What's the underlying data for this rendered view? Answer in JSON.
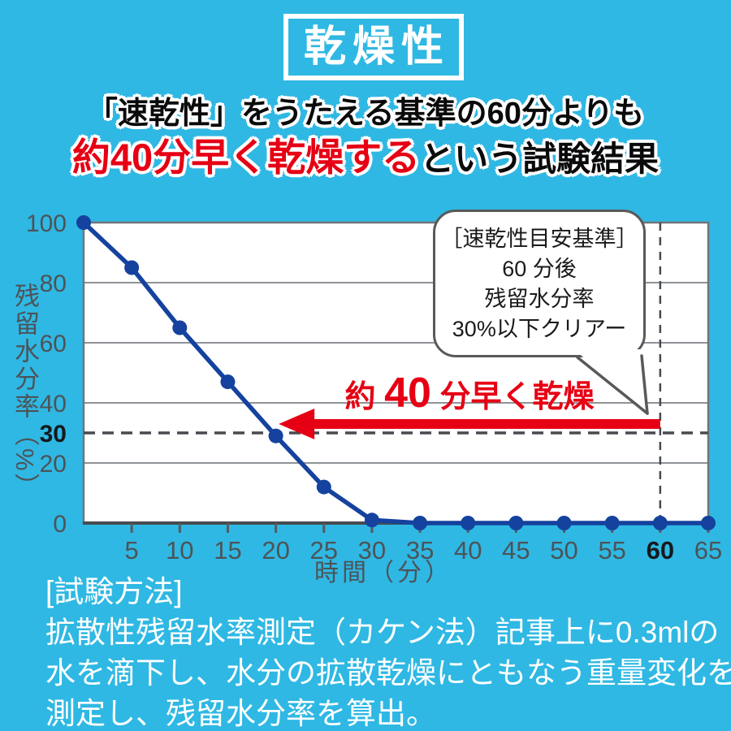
{
  "page": {
    "bg_color": "#2fb8e3",
    "badge": "乾燥性",
    "headline_line1": "「速乾性」をうたえる基準の60分よりも",
    "headline_line2_red": "約40分早く乾燥する",
    "headline_line2_black": "という試験結果"
  },
  "chart_data": {
    "type": "line",
    "x": [
      0,
      5,
      10,
      15,
      20,
      25,
      30,
      35,
      40,
      45,
      50,
      55,
      60,
      65
    ],
    "values": [
      100,
      85,
      65,
      47,
      29,
      12,
      1,
      0,
      0,
      0,
      0,
      0,
      0,
      0
    ],
    "xlabel": "時間（分）",
    "ylabel": "残留水分率（%）",
    "xlim": [
      0,
      65
    ],
    "ylim": [
      0,
      100
    ],
    "xticks": [
      5,
      10,
      15,
      20,
      25,
      30,
      35,
      40,
      45,
      50,
      55,
      60,
      65
    ],
    "yticks": [
      0,
      20,
      30,
      40,
      60,
      80,
      100
    ],
    "grid_y": [
      20,
      40,
      60,
      80
    ],
    "emphasized_xtick": 60,
    "emphasized_ytick": 30,
    "threshold_y": 30,
    "threshold_x": 60,
    "grid_on": true,
    "line_color": "#15429e",
    "annotation_arrow": {
      "from_x": 60,
      "to_x": 20.3,
      "color": "#e60014",
      "label_prefix": "約 ",
      "label_number": "40",
      "label_suffix": " 分早く乾燥"
    },
    "callout": {
      "lines": [
        "［速乾性目安基準］",
        "60 分後",
        "残留水分率",
        "30%以下クリアー"
      ]
    }
  },
  "footer": {
    "lines": [
      "[試験方法]",
      "拡散性残留水率測定（カケン法）記事上に0.3mlの",
      "水を滴下し、水分の拡散乾燥にともなう重量変化を",
      "測定し、残留水分率を算出。"
    ]
  }
}
